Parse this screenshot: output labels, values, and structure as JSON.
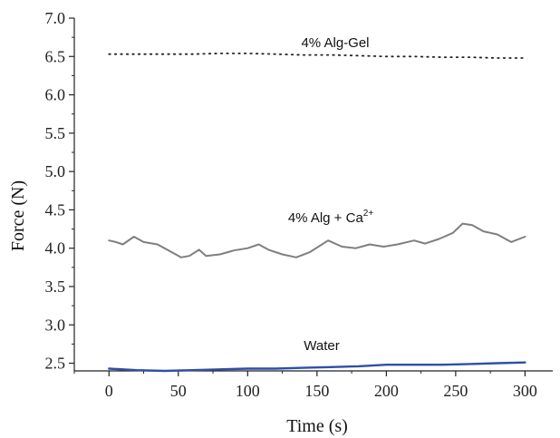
{
  "chart_data": {
    "type": "line",
    "title": "",
    "xlabel": "Time (s)",
    "ylabel": "Force (N)",
    "xlim": [
      -25,
      320
    ],
    "ylim": [
      2.4,
      7.0
    ],
    "xticks": [
      "0",
      "50",
      "100",
      "150",
      "200",
      "250",
      "300"
    ],
    "xtick_values": [
      0,
      50,
      100,
      150,
      200,
      250,
      300
    ],
    "yticks": [
      "2.5",
      "3.0",
      "3.5",
      "4.0",
      "4.5",
      "5.0",
      "5.5",
      "6.0",
      "6.5",
      "7.0"
    ],
    "ytick_values": [
      2.5,
      3.0,
      3.5,
      4.0,
      4.5,
      5.0,
      5.5,
      6.0,
      6.5,
      7.0
    ],
    "grid": false,
    "series": [
      {
        "name": "4% Alg-Gel",
        "label_main": "4% Alg-Gel",
        "label_sup": "",
        "style": "dotted",
        "color": "#222222",
        "x": [
          0,
          20,
          40,
          60,
          80,
          100,
          120,
          140,
          160,
          180,
          200,
          220,
          240,
          260,
          280,
          300
        ],
        "y": [
          6.53,
          6.53,
          6.53,
          6.53,
          6.54,
          6.54,
          6.53,
          6.52,
          6.52,
          6.51,
          6.5,
          6.5,
          6.49,
          6.49,
          6.48,
          6.48
        ]
      },
      {
        "name": "4% Alg + Ca2+",
        "label_main": "4% Alg + Ca",
        "label_sup": "2+",
        "style": "solid",
        "color": "#7f7f7f",
        "x": [
          0,
          5,
          10,
          18,
          25,
          35,
          45,
          52,
          58,
          65,
          70,
          80,
          90,
          100,
          108,
          115,
          125,
          135,
          145,
          158,
          168,
          178,
          188,
          198,
          208,
          220,
          228,
          238,
          248,
          255,
          262,
          270,
          280,
          290,
          300
        ],
        "y": [
          4.1,
          4.08,
          4.05,
          4.15,
          4.08,
          4.05,
          3.95,
          3.88,
          3.9,
          3.98,
          3.9,
          3.92,
          3.97,
          4.0,
          4.05,
          3.98,
          3.92,
          3.88,
          3.95,
          4.1,
          4.02,
          4.0,
          4.05,
          4.02,
          4.05,
          4.1,
          4.06,
          4.12,
          4.2,
          4.32,
          4.3,
          4.22,
          4.18,
          4.08,
          4.15
        ]
      },
      {
        "name": "Water",
        "label_main": "Water",
        "label_sup": "",
        "style": "solid",
        "color": "#2f4fa8",
        "x": [
          0,
          20,
          40,
          60,
          80,
          100,
          120,
          140,
          160,
          180,
          200,
          220,
          240,
          260,
          280,
          300
        ],
        "y": [
          2.43,
          2.41,
          2.4,
          2.41,
          2.42,
          2.43,
          2.43,
          2.44,
          2.45,
          2.46,
          2.48,
          2.48,
          2.48,
          2.49,
          2.5,
          2.51
        ]
      }
    ]
  }
}
